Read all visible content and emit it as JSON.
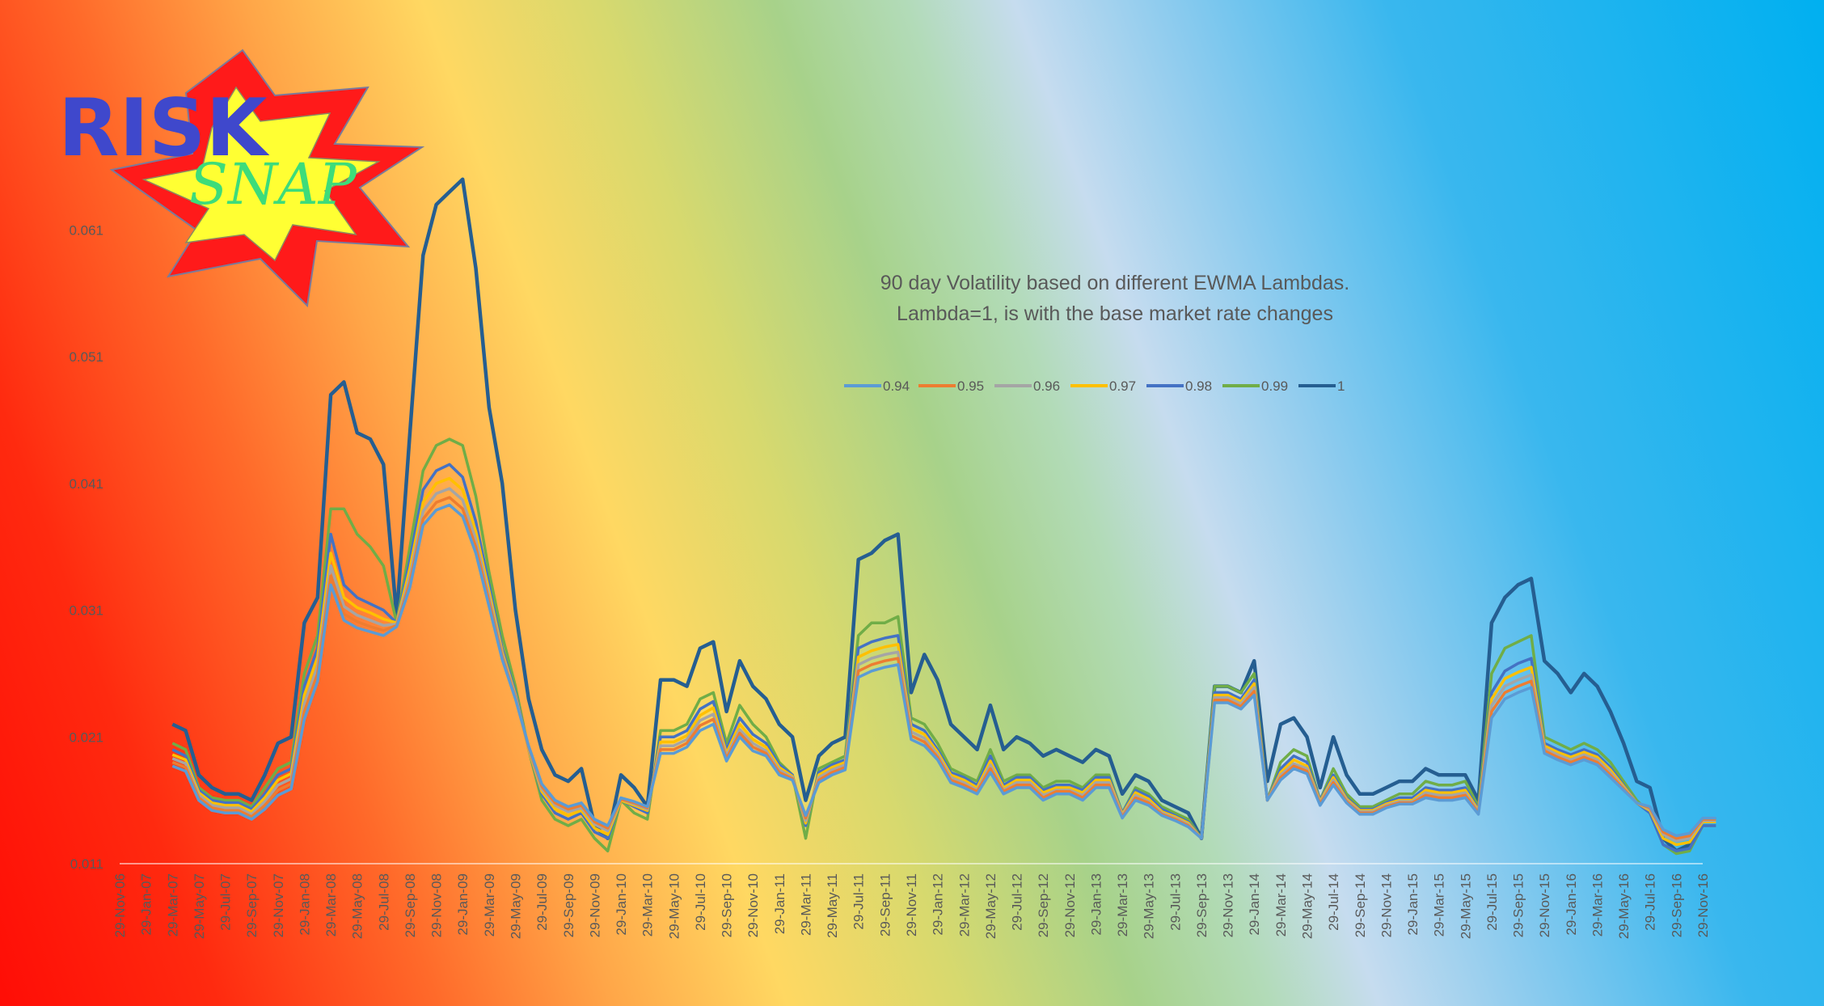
{
  "logo": {
    "word1": "RISK",
    "word2": "SNAP",
    "colors": {
      "text1": "#3f48cc",
      "text2": "#3ddc7a",
      "star_outer": "#ff1a1a",
      "star_inner": "#ffff33"
    }
  },
  "chart_data": {
    "type": "line",
    "title": [
      "90 day Volatility based on different EWMA Lambdas.",
      "Lambda=1, is with the base market rate changes"
    ],
    "ylim": [
      0.011,
      0.066
    ],
    "yticks": [
      0.011,
      0.021,
      0.031,
      0.041,
      0.051,
      0.061
    ],
    "ytick_labels": [
      "0.011",
      "0.021",
      "0.031",
      "0.041",
      "0.051",
      "0.061"
    ],
    "xtick_labels": [
      "29-Nov-06",
      "29-Jan-07",
      "29-Mar-07",
      "29-May-07",
      "29-Jul-07",
      "29-Sep-07",
      "29-Nov-07",
      "29-Jan-08",
      "29-Mar-08",
      "29-May-08",
      "29-Jul-08",
      "29-Sep-08",
      "29-Nov-08",
      "29-Jan-09",
      "29-Mar-09",
      "29-May-09",
      "29-Jul-09",
      "29-Sep-09",
      "29-Nov-09",
      "29-Jan-10",
      "29-Mar-10",
      "29-May-10",
      "29-Jul-10",
      "29-Sep-10",
      "29-Nov-10",
      "29-Jan-11",
      "29-Mar-11",
      "29-May-11",
      "29-Jul-11",
      "29-Sep-11",
      "29-Nov-11",
      "29-Jan-12",
      "29-Mar-12",
      "29-May-12",
      "29-Jul-12",
      "29-Sep-12",
      "29-Nov-12",
      "29-Jan-13",
      "29-Mar-13",
      "29-May-13",
      "29-Jul-13",
      "29-Sep-13",
      "29-Nov-13",
      "29-Jan-14",
      "29-Mar-14",
      "29-May-14",
      "29-Jul-14",
      "29-Sep-14",
      "29-Nov-14",
      "29-Jan-15",
      "29-Mar-15",
      "29-May-15",
      "29-Jul-15",
      "29-Sep-15",
      "29-Nov-15",
      "29-Jan-16",
      "29-Mar-16",
      "29-May-16",
      "29-Jul-16",
      "29-Sep-16",
      "29-Nov-16"
    ],
    "x": [
      "29-Mar-07",
      "29-Apr-07",
      "29-May-07",
      "29-Jun-07",
      "29-Jul-07",
      "29-Aug-07",
      "29-Sep-07",
      "29-Oct-07",
      "29-Nov-07",
      "29-Dec-07",
      "29-Jan-08",
      "29-Feb-08",
      "29-Mar-08",
      "29-Apr-08",
      "29-May-08",
      "29-Jun-08",
      "29-Jul-08",
      "29-Aug-08",
      "29-Sep-08",
      "29-Oct-08",
      "29-Nov-08",
      "29-Dec-08",
      "29-Jan-09",
      "29-Feb-09",
      "29-Mar-09",
      "29-Apr-09",
      "29-May-09",
      "29-Jun-09",
      "29-Jul-09",
      "29-Aug-09",
      "29-Sep-09",
      "29-Oct-09",
      "29-Nov-09",
      "29-Dec-09",
      "29-Jan-10",
      "29-Feb-10",
      "29-Mar-10",
      "29-Apr-10",
      "29-May-10",
      "29-Jun-10",
      "29-Jul-10",
      "29-Aug-10",
      "29-Sep-10",
      "29-Oct-10",
      "29-Nov-10",
      "29-Dec-10",
      "29-Jan-11",
      "29-Feb-11",
      "29-Mar-11",
      "29-Apr-11",
      "29-May-11",
      "29-Jun-11",
      "29-Jul-11",
      "29-Aug-11",
      "29-Sep-11",
      "29-Oct-11",
      "29-Nov-11",
      "29-Dec-11",
      "29-Jan-12",
      "29-Feb-12",
      "29-Mar-12",
      "29-Apr-12",
      "29-May-12",
      "29-Jun-12",
      "29-Jul-12",
      "29-Aug-12",
      "29-Sep-12",
      "29-Oct-12",
      "29-Nov-12",
      "29-Dec-12",
      "29-Jan-13",
      "29-Feb-13",
      "29-Mar-13",
      "29-Apr-13",
      "29-May-13",
      "29-Jun-13",
      "29-Jul-13",
      "29-Aug-13",
      "29-Sep-13",
      "29-Oct-13",
      "29-Nov-13",
      "29-Dec-13",
      "29-Jan-14",
      "29-Feb-14",
      "29-Mar-14",
      "29-Apr-14",
      "29-May-14",
      "29-Jun-14",
      "29-Jul-14",
      "29-Aug-14",
      "29-Sep-14",
      "29-Oct-14",
      "29-Nov-14",
      "29-Dec-14",
      "29-Jan-15",
      "29-Feb-15",
      "29-Mar-15",
      "29-Apr-15",
      "29-May-15",
      "29-Jun-15",
      "29-Jul-15",
      "29-Aug-15",
      "29-Sep-15",
      "29-Oct-15",
      "29-Nov-15",
      "29-Dec-15",
      "29-Jan-16",
      "29-Feb-16",
      "29-Mar-16",
      "29-Apr-16",
      "29-May-16",
      "29-Jun-16",
      "29-Jul-16",
      "29-Aug-16",
      "29-Sep-16",
      "29-Oct-16",
      "29-Nov-16",
      "29-Dec-16"
    ],
    "series": [
      {
        "name": "1",
        "color": "#255e91",
        "values": [
          0.022,
          0.0215,
          0.018,
          0.017,
          0.0165,
          0.0165,
          0.016,
          0.018,
          0.0205,
          0.021,
          0.03,
          0.032,
          0.048,
          0.049,
          0.045,
          0.0445,
          0.0425,
          0.0305,
          0.045,
          0.059,
          0.063,
          0.064,
          0.065,
          0.058,
          0.047,
          0.041,
          0.031,
          0.024,
          0.02,
          0.018,
          0.0175,
          0.0185,
          0.014,
          0.013,
          0.018,
          0.017,
          0.0155,
          0.0255,
          0.0255,
          0.025,
          0.028,
          0.0285,
          0.023,
          0.027,
          0.025,
          0.024,
          0.022,
          0.021,
          0.016,
          0.0195,
          0.0205,
          0.021,
          0.035,
          0.0355,
          0.0365,
          0.037,
          0.0245,
          0.0275,
          0.0255,
          0.022,
          0.021,
          0.02,
          0.0235,
          0.02,
          0.021,
          0.0205,
          0.0195,
          0.02,
          0.0195,
          0.019,
          0.02,
          0.0195,
          0.0165,
          0.018,
          0.0175,
          0.016,
          0.0155,
          0.015,
          0.013,
          0.025,
          0.025,
          0.0245,
          0.027,
          0.0175,
          0.022,
          0.0225,
          0.021,
          0.017,
          0.021,
          0.018,
          0.0165,
          0.0165,
          0.017,
          0.0175,
          0.0175,
          0.0185,
          0.018,
          0.018,
          0.018,
          0.016,
          0.03,
          0.032,
          0.033,
          0.0335,
          0.027,
          0.026,
          0.0245,
          0.026,
          0.025,
          0.023,
          0.0205,
          0.0175,
          0.017,
          0.013,
          0.012,
          0.0125,
          0.0145,
          0.0145
        ]
      },
      {
        "name": "0.99",
        "color": "#70ad47",
        "values": [
          0.0205,
          0.02,
          0.017,
          0.0162,
          0.016,
          0.016,
          0.0155,
          0.017,
          0.0185,
          0.019,
          0.026,
          0.029,
          0.039,
          0.039,
          0.037,
          0.036,
          0.0345,
          0.03,
          0.036,
          0.042,
          0.044,
          0.0445,
          0.044,
          0.04,
          0.034,
          0.029,
          0.025,
          0.02,
          0.016,
          0.0145,
          0.014,
          0.0145,
          0.013,
          0.012,
          0.016,
          0.015,
          0.0145,
          0.0215,
          0.0215,
          0.022,
          0.024,
          0.0245,
          0.0205,
          0.0235,
          0.022,
          0.021,
          0.019,
          0.018,
          0.013,
          0.0185,
          0.019,
          0.0195,
          0.029,
          0.03,
          0.03,
          0.0305,
          0.0225,
          0.022,
          0.0205,
          0.0185,
          0.018,
          0.0175,
          0.02,
          0.0175,
          0.018,
          0.018,
          0.017,
          0.0175,
          0.0175,
          0.017,
          0.018,
          0.018,
          0.015,
          0.017,
          0.0165,
          0.0155,
          0.015,
          0.0145,
          0.013,
          0.025,
          0.025,
          0.0245,
          0.026,
          0.016,
          0.019,
          0.02,
          0.0195,
          0.016,
          0.0185,
          0.0165,
          0.0155,
          0.0155,
          0.016,
          0.0165,
          0.0165,
          0.0175,
          0.0172,
          0.0172,
          0.0175,
          0.0155,
          0.026,
          0.028,
          0.0285,
          0.029,
          0.021,
          0.0205,
          0.02,
          0.0205,
          0.02,
          0.019,
          0.0175,
          0.016,
          0.015,
          0.0125,
          0.0118,
          0.012,
          0.014,
          0.014
        ]
      },
      {
        "name": "0.98",
        "color": "#4472c4",
        "values": [
          0.02,
          0.0195,
          0.0168,
          0.016,
          0.0158,
          0.0158,
          0.0153,
          0.0165,
          0.018,
          0.0185,
          0.025,
          0.028,
          0.037,
          0.033,
          0.032,
          0.0315,
          0.031,
          0.03,
          0.035,
          0.0405,
          0.042,
          0.0425,
          0.0415,
          0.038,
          0.033,
          0.028,
          0.0245,
          0.02,
          0.0165,
          0.015,
          0.0145,
          0.015,
          0.0135,
          0.013,
          0.016,
          0.0155,
          0.015,
          0.021,
          0.021,
          0.0215,
          0.0232,
          0.0238,
          0.02,
          0.0225,
          0.0212,
          0.0205,
          0.0188,
          0.018,
          0.014,
          0.0182,
          0.0188,
          0.0192,
          0.028,
          0.0285,
          0.0288,
          0.029,
          0.022,
          0.0215,
          0.02,
          0.0182,
          0.0178,
          0.0172,
          0.0195,
          0.0172,
          0.0178,
          0.0178,
          0.0168,
          0.0172,
          0.0172,
          0.0168,
          0.0178,
          0.0178,
          0.015,
          0.0168,
          0.0163,
          0.0153,
          0.0148,
          0.0143,
          0.013,
          0.0245,
          0.0245,
          0.024,
          0.0255,
          0.016,
          0.0185,
          0.0195,
          0.019,
          0.016,
          0.018,
          0.0162,
          0.0153,
          0.0153,
          0.0158,
          0.0162,
          0.0162,
          0.017,
          0.0168,
          0.0168,
          0.017,
          0.0153,
          0.0245,
          0.0262,
          0.0268,
          0.0272,
          0.0205,
          0.02,
          0.0196,
          0.02,
          0.0196,
          0.0186,
          0.0172,
          0.0158,
          0.015,
          0.0125,
          0.012,
          0.0122,
          0.014,
          0.014
        ]
      },
      {
        "name": "0.97",
        "color": "#ffc000",
        "values": [
          0.0196,
          0.0192,
          0.0166,
          0.0158,
          0.0156,
          0.0156,
          0.0151,
          0.0162,
          0.0176,
          0.0181,
          0.0243,
          0.0273,
          0.0355,
          0.032,
          0.0312,
          0.0308,
          0.0303,
          0.03,
          0.0343,
          0.0395,
          0.041,
          0.0414,
          0.0405,
          0.0372,
          0.0325,
          0.0277,
          0.0243,
          0.02,
          0.0167,
          0.0153,
          0.0148,
          0.0152,
          0.0138,
          0.0133,
          0.016,
          0.0156,
          0.0152,
          0.0206,
          0.0206,
          0.0211,
          0.0227,
          0.0233,
          0.0197,
          0.022,
          0.0208,
          0.0202,
          0.0186,
          0.0179,
          0.0142,
          0.018,
          0.0186,
          0.019,
          0.0273,
          0.0278,
          0.0281,
          0.0283,
          0.0217,
          0.0212,
          0.0198,
          0.018,
          0.0176,
          0.017,
          0.0191,
          0.017,
          0.0176,
          0.0176,
          0.0166,
          0.017,
          0.017,
          0.0166,
          0.0176,
          0.0176,
          0.0149,
          0.0166,
          0.0161,
          0.0151,
          0.0147,
          0.0142,
          0.013,
          0.0243,
          0.0243,
          0.0238,
          0.0252,
          0.016,
          0.0182,
          0.0192,
          0.0187,
          0.0159,
          0.0178,
          0.0161,
          0.0152,
          0.0152,
          0.0157,
          0.016,
          0.016,
          0.0168,
          0.0166,
          0.0166,
          0.0168,
          0.0152,
          0.024,
          0.0256,
          0.0261,
          0.0265,
          0.0203,
          0.0198,
          0.0194,
          0.0198,
          0.0194,
          0.0184,
          0.0171,
          0.0158,
          0.0152,
          0.013,
          0.0125,
          0.0127,
          0.0143,
          0.0143
        ]
      },
      {
        "name": "0.96",
        "color": "#a5a5a5",
        "values": [
          0.0193,
          0.0189,
          0.0164,
          0.0156,
          0.0154,
          0.0154,
          0.0149,
          0.0159,
          0.0172,
          0.0177,
          0.0236,
          0.0266,
          0.0345,
          0.0313,
          0.0306,
          0.0302,
          0.0298,
          0.0299,
          0.0337,
          0.0388,
          0.0402,
          0.0406,
          0.0397,
          0.0366,
          0.0321,
          0.0275,
          0.0242,
          0.0201,
          0.0169,
          0.0156,
          0.0151,
          0.0154,
          0.0141,
          0.0136,
          0.0161,
          0.0157,
          0.0153,
          0.0203,
          0.0203,
          0.0208,
          0.0223,
          0.0228,
          0.0195,
          0.0216,
          0.0205,
          0.0199,
          0.0184,
          0.0178,
          0.0144,
          0.0178,
          0.0184,
          0.0188,
          0.0267,
          0.0272,
          0.0275,
          0.0277,
          0.0214,
          0.0209,
          0.0196,
          0.0178,
          0.0174,
          0.0168,
          0.0188,
          0.0168,
          0.0174,
          0.0174,
          0.0164,
          0.0168,
          0.0168,
          0.0164,
          0.0174,
          0.0174,
          0.0148,
          0.0164,
          0.0159,
          0.015,
          0.0146,
          0.0141,
          0.013,
          0.0241,
          0.0241,
          0.0236,
          0.0249,
          0.016,
          0.018,
          0.0189,
          0.0185,
          0.0158,
          0.0176,
          0.016,
          0.0151,
          0.0151,
          0.0156,
          0.0159,
          0.0159,
          0.0166,
          0.0164,
          0.0164,
          0.0166,
          0.0151,
          0.0235,
          0.025,
          0.0255,
          0.0259,
          0.0201,
          0.0196,
          0.0192,
          0.0196,
          0.0192,
          0.0182,
          0.017,
          0.0158,
          0.0153,
          0.0133,
          0.0128,
          0.013,
          0.0144,
          0.0144
        ]
      },
      {
        "name": "0.95",
        "color": "#ed7d31",
        "values": [
          0.019,
          0.0186,
          0.0162,
          0.0154,
          0.0152,
          0.0152,
          0.0147,
          0.0156,
          0.0168,
          0.0173,
          0.023,
          0.026,
          0.0337,
          0.0307,
          0.0301,
          0.0297,
          0.0294,
          0.0298,
          0.0332,
          0.0382,
          0.0395,
          0.0399,
          0.039,
          0.036,
          0.0317,
          0.0273,
          0.0241,
          0.0202,
          0.0171,
          0.0158,
          0.0153,
          0.0156,
          0.0143,
          0.0138,
          0.0161,
          0.0158,
          0.0154,
          0.02,
          0.02,
          0.0205,
          0.0219,
          0.0224,
          0.0193,
          0.0213,
          0.0202,
          0.0197,
          0.0182,
          0.0177,
          0.0146,
          0.0176,
          0.0182,
          0.0186,
          0.0262,
          0.0267,
          0.027,
          0.0272,
          0.0211,
          0.0206,
          0.0194,
          0.0176,
          0.0172,
          0.0167,
          0.0185,
          0.0167,
          0.0172,
          0.0172,
          0.0162,
          0.0167,
          0.0167,
          0.0162,
          0.0172,
          0.0172,
          0.0147,
          0.0162,
          0.0158,
          0.0149,
          0.0145,
          0.014,
          0.013,
          0.0239,
          0.0239,
          0.0234,
          0.0246,
          0.016,
          0.0178,
          0.0187,
          0.0183,
          0.0157,
          0.0174,
          0.0159,
          0.015,
          0.015,
          0.0155,
          0.0158,
          0.0158,
          0.0164,
          0.0162,
          0.0162,
          0.0164,
          0.015,
          0.023,
          0.0245,
          0.025,
          0.0254,
          0.0199,
          0.0194,
          0.019,
          0.0194,
          0.019,
          0.018,
          0.0169,
          0.0158,
          0.0154,
          0.0135,
          0.013,
          0.0132,
          0.0145,
          0.0145
        ]
      },
      {
        "name": "0.94",
        "color": "#5b9bd5",
        "values": [
          0.0187,
          0.0183,
          0.016,
          0.0152,
          0.015,
          0.015,
          0.0145,
          0.0153,
          0.0164,
          0.0169,
          0.0224,
          0.0254,
          0.033,
          0.0302,
          0.0296,
          0.0293,
          0.029,
          0.0297,
          0.0328,
          0.0377,
          0.0389,
          0.0393,
          0.0384,
          0.0355,
          0.0313,
          0.0271,
          0.024,
          0.0203,
          0.0173,
          0.016,
          0.0155,
          0.0158,
          0.0145,
          0.014,
          0.0162,
          0.0159,
          0.0155,
          0.0197,
          0.0197,
          0.0202,
          0.0215,
          0.022,
          0.0191,
          0.021,
          0.0199,
          0.0195,
          0.018,
          0.0176,
          0.0148,
          0.0174,
          0.018,
          0.0184,
          0.0257,
          0.0262,
          0.0265,
          0.0267,
          0.0208,
          0.0203,
          0.0192,
          0.0174,
          0.017,
          0.0165,
          0.0182,
          0.0165,
          0.017,
          0.017,
          0.016,
          0.0165,
          0.0165,
          0.016,
          0.017,
          0.017,
          0.0146,
          0.016,
          0.0156,
          0.0148,
          0.0144,
          0.0139,
          0.013,
          0.0237,
          0.0237,
          0.0232,
          0.0243,
          0.016,
          0.0176,
          0.0185,
          0.0181,
          0.0156,
          0.0172,
          0.0158,
          0.0149,
          0.0149,
          0.0154,
          0.0157,
          0.0157,
          0.0162,
          0.016,
          0.016,
          0.0162,
          0.0149,
          0.0225,
          0.024,
          0.0245,
          0.0249,
          0.0197,
          0.0192,
          0.0188,
          0.0192,
          0.0188,
          0.0178,
          0.0168,
          0.0158,
          0.0155,
          0.0137,
          0.0132,
          0.0134,
          0.0146,
          0.0146
        ]
      }
    ],
    "legend": {
      "placement": "top-right",
      "entries": [
        "0.94",
        "0.95",
        "0.96",
        "0.97",
        "0.98",
        "0.99",
        "1"
      ]
    },
    "grid": false
  }
}
